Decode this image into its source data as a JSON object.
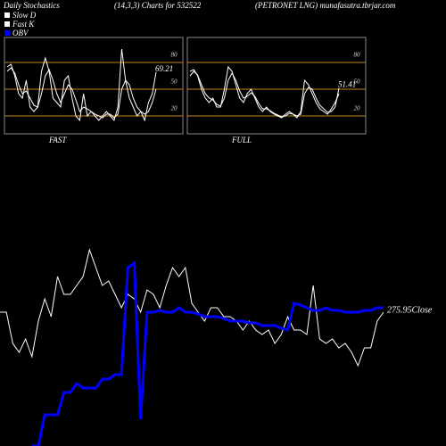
{
  "header": {
    "left": "Daily Stochastics",
    "center": "(14,3,3) Charts for 532522",
    "right": "(PETRONET LNG) munafasutra.tbrjar.com"
  },
  "chart_data": [
    {
      "type": "line",
      "title": "FAST",
      "ylim": [
        0,
        100
      ],
      "yticks": [
        20,
        50,
        80
      ],
      "tick_color": "#c8821e",
      "series": [
        {
          "name": "Fast K",
          "color": "#ffffff",
          "values": [
            75,
            78,
            65,
            45,
            40,
            60,
            30,
            25,
            30,
            70,
            85,
            70,
            40,
            35,
            30,
            60,
            65,
            40,
            20,
            15,
            45,
            20,
            25,
            20,
            15,
            20,
            25,
            20,
            15,
            30,
            95,
            60,
            40,
            30,
            20,
            25,
            15,
            35,
            45,
            69.21
          ]
        },
        {
          "name": "Slow D",
          "color": "#ffffff",
          "values": [
            70,
            74,
            68,
            55,
            45,
            48,
            40,
            32,
            30,
            45,
            65,
            72,
            60,
            45,
            35,
            45,
            55,
            50,
            38,
            25,
            30,
            28,
            25,
            22,
            20,
            18,
            22,
            22,
            18,
            22,
            50,
            60,
            55,
            40,
            30,
            25,
            22,
            25,
            35,
            50
          ]
        }
      ]
    },
    {
      "type": "line",
      "title": "FULL",
      "ylim": [
        0,
        100
      ],
      "yticks": [
        20,
        50,
        80
      ],
      "tick_color": "#c8821e",
      "series": [
        {
          "name": "Fast K",
          "color": "#ffffff",
          "values": [
            70,
            72,
            65,
            50,
            40,
            35,
            40,
            30,
            30,
            50,
            75,
            70,
            55,
            40,
            35,
            45,
            50,
            40,
            30,
            25,
            30,
            25,
            22,
            20,
            18,
            22,
            25,
            22,
            18,
            25,
            60,
            55,
            45,
            35,
            28,
            25,
            22,
            28,
            35,
            45
          ]
        },
        {
          "name": "Slow D",
          "color": "#ffffff",
          "values": [
            65,
            70,
            66,
            55,
            45,
            40,
            38,
            33,
            31,
            40,
            60,
            68,
            60,
            48,
            40,
            42,
            46,
            42,
            34,
            28,
            28,
            26,
            23,
            21,
            19,
            20,
            23,
            22,
            20,
            22,
            45,
            52,
            50,
            40,
            32,
            28,
            24,
            25,
            30,
            51.41
          ]
        }
      ]
    },
    {
      "type": "line",
      "ylim": [
        0,
        240
      ],
      "annotation": "275.95Close",
      "series": [
        {
          "color": "#ffffff",
          "values": [
            150,
            150,
            115,
            105,
            120,
            100,
            140,
            165,
            145,
            190,
            170,
            170,
            180,
            190,
            220,
            200,
            180,
            185,
            170,
            155,
            170,
            165,
            150,
            175,
            170,
            155,
            180,
            200,
            190,
            200,
            160,
            150,
            140,
            155,
            155,
            145,
            145,
            140,
            130,
            140,
            130,
            125,
            130,
            115,
            125,
            145,
            130,
            130,
            125,
            180,
            120,
            115,
            120,
            110,
            115,
            105,
            90,
            110,
            110,
            140,
            150
          ]
        },
        {
          "name": "OBV",
          "color": "#0000ff",
          "values": [
            null,
            null,
            null,
            null,
            null,
            0,
            0,
            35,
            35,
            35,
            60,
            60,
            70,
            65,
            65,
            65,
            75,
            75,
            80,
            80,
            200,
            205,
            30,
            150,
            150,
            152,
            150,
            150,
            155,
            150,
            150,
            148,
            145,
            145,
            145,
            143,
            140,
            140,
            140,
            138,
            138,
            135,
            135,
            135,
            132,
            130,
            160,
            158,
            155,
            152,
            152,
            155,
            152,
            152,
            150,
            150,
            150,
            152,
            152,
            155,
            155
          ]
        }
      ]
    }
  ]
}
